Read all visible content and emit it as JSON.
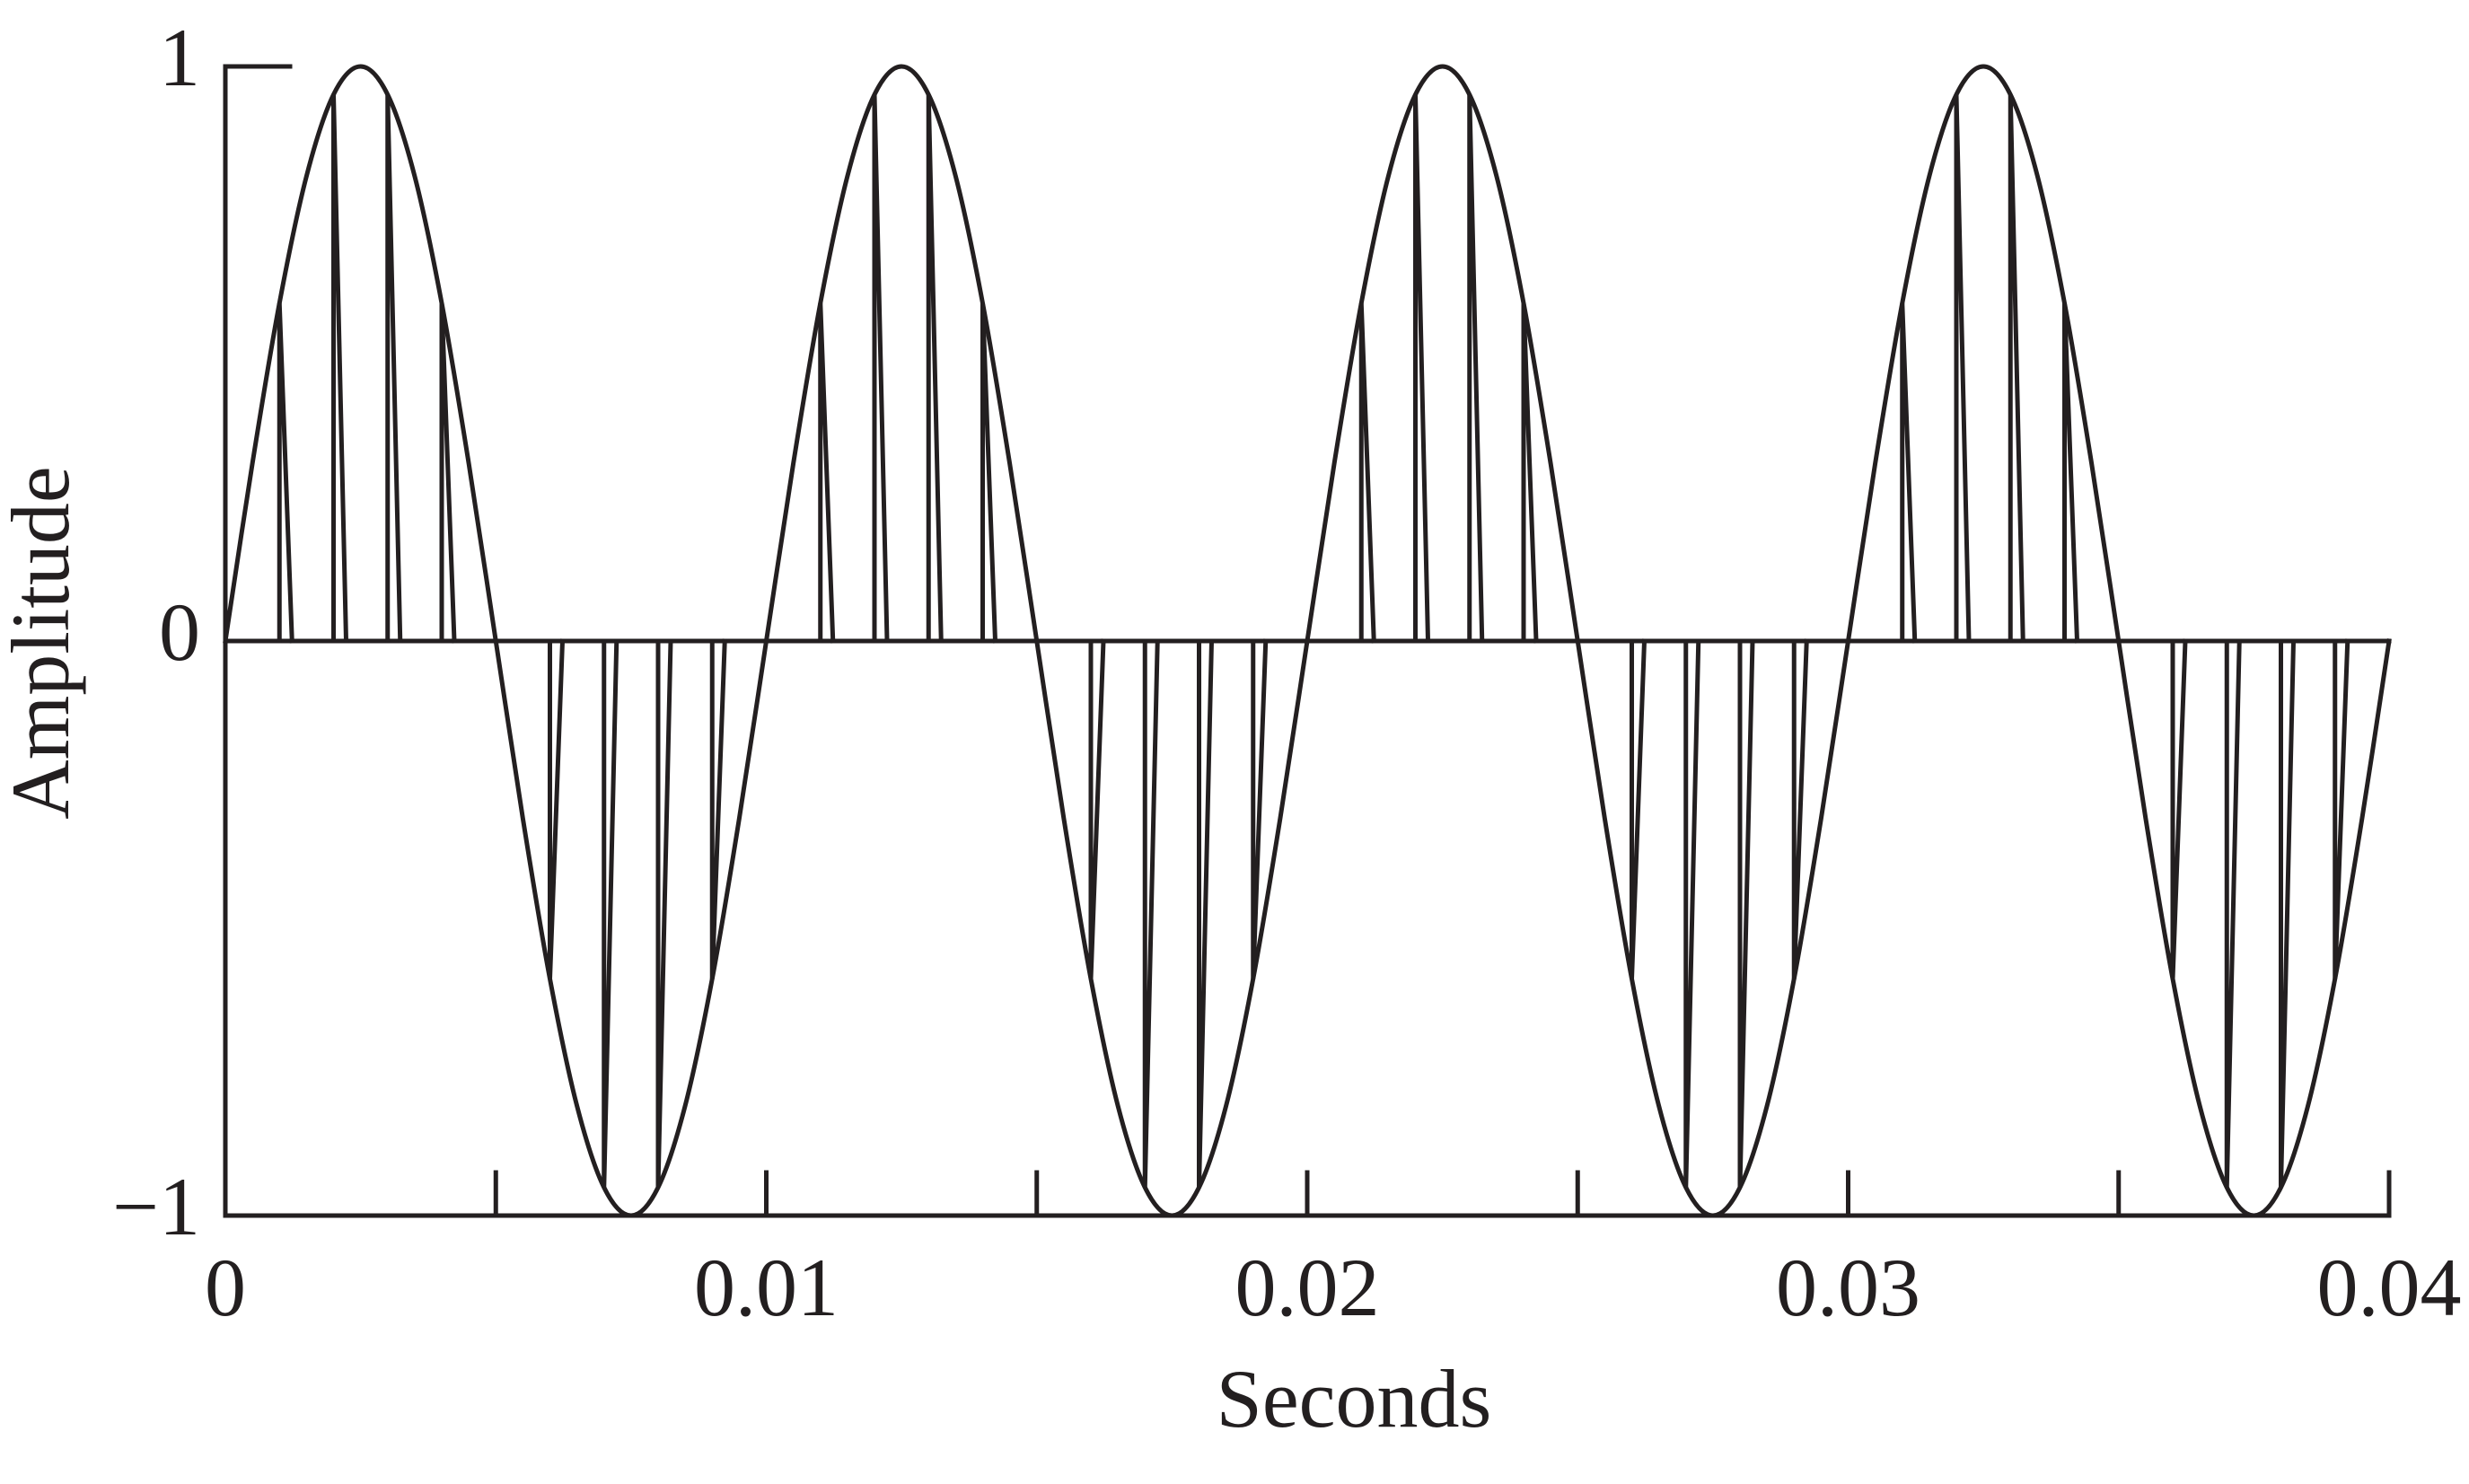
{
  "chart_data": {
    "type": "sampled-signal",
    "xlabel": "Seconds",
    "ylabel": "Amplitude",
    "xlim": [
      0,
      0.04
    ],
    "ylim": [
      -1,
      1
    ],
    "xticks": [
      0,
      0.01,
      0.02,
      0.03,
      0.04
    ],
    "xminor_ticks": [
      0.005,
      0.015,
      0.025,
      0.035
    ],
    "yticks": [
      {
        "value": -1,
        "label": "−1"
      },
      0,
      1
    ],
    "color": "#231f20",
    "series": [
      {
        "kind": "line",
        "x": [
          0,
          0.0005,
          0.001,
          0.0015,
          0.002,
          0.0025,
          0.003,
          0.0035,
          0.004,
          0.0045,
          0.005,
          0.0055,
          0.006,
          0.0065,
          0.007,
          0.0075,
          0.008,
          0.0085,
          0.009,
          0.0095,
          0.01,
          0.0105,
          0.011,
          0.0115,
          0.012,
          0.0125,
          0.013,
          0.0135,
          0.014,
          0.0145,
          0.015,
          0.0155,
          0.016,
          0.0165,
          0.017,
          0.0175,
          0.018,
          0.0185,
          0.019,
          0.0195,
          0.02,
          0.0205,
          0.021,
          0.0215,
          0.022,
          0.0225,
          0.023,
          0.0235,
          0.024,
          0.0245,
          0.025,
          0.0255,
          0.026,
          0.0265,
          0.027,
          0.0275,
          0.028,
          0.0285,
          0.029,
          0.0295,
          0.03,
          0.0305,
          0.031,
          0.0315,
          0.032,
          0.0325,
          0.033,
          0.0335,
          0.034,
          0.0345,
          0.035,
          0.0355,
          0.036,
          0.0365,
          0.037,
          0.0375,
          0.038,
          0.0385,
          0.039,
          0.0395,
          0.04
        ],
        "values": [
          0,
          0.309,
          0.588,
          0.809,
          0.951,
          1,
          0.951,
          0.809,
          0.588,
          0.309,
          0,
          -0.309,
          -0.588,
          -0.809,
          -0.951,
          -1,
          -0.951,
          -0.809,
          -0.588,
          -0.309,
          0,
          0.309,
          0.588,
          0.809,
          0.951,
          1,
          0.951,
          0.809,
          0.588,
          0.309,
          0,
          -0.309,
          -0.588,
          -0.809,
          -0.951,
          -1,
          -0.951,
          -0.809,
          -0.588,
          -0.309,
          0,
          0.309,
          0.588,
          0.809,
          0.951,
          1,
          0.951,
          0.809,
          0.588,
          0.309,
          0,
          -0.309,
          -0.588,
          -0.809,
          -0.951,
          -1,
          -0.951,
          -0.809,
          -0.588,
          -0.309,
          0,
          0.309,
          0.588,
          0.809,
          0.951,
          1,
          0.951,
          0.809,
          0.588,
          0.309,
          0,
          -0.309,
          -0.588,
          -0.809,
          -0.951,
          -1,
          -0.951,
          -0.809,
          -0.588,
          -0.309,
          0
        ]
      },
      {
        "kind": "pulses",
        "x": [
          0,
          0.001,
          0.002,
          0.003,
          0.004,
          0.005,
          0.006,
          0.007,
          0.008,
          0.009,
          0.01,
          0.011,
          0.012,
          0.013,
          0.014,
          0.015,
          0.016,
          0.017,
          0.018,
          0.019,
          0.02,
          0.021,
          0.022,
          0.023,
          0.024,
          0.025,
          0.026,
          0.027,
          0.028,
          0.029,
          0.03,
          0.031,
          0.032,
          0.033,
          0.034,
          0.035,
          0.036,
          0.037,
          0.038,
          0.039
        ],
        "values": [
          0,
          0.588,
          0.951,
          0.951,
          0.588,
          0,
          -0.588,
          -0.951,
          -0.951,
          -0.588,
          0,
          0.588,
          0.951,
          0.951,
          0.588,
          0,
          -0.588,
          -0.951,
          -0.951,
          -0.588,
          0,
          0.588,
          0.951,
          0.951,
          0.588,
          0,
          -0.588,
          -0.951,
          -0.951,
          -0.588,
          0,
          0.588,
          0.951,
          0.951,
          0.588,
          0,
          -0.588,
          -0.951,
          -0.951,
          -0.588
        ]
      }
    ]
  }
}
